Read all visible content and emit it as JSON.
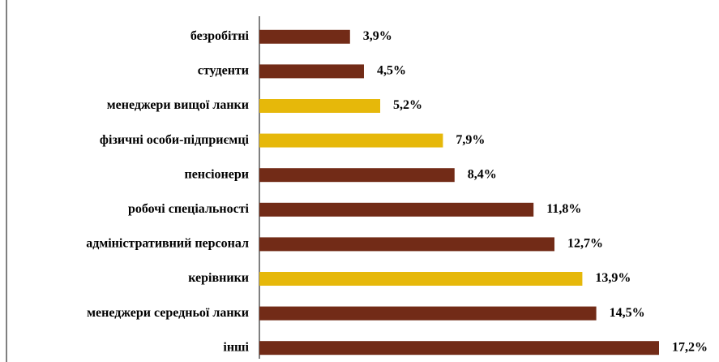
{
  "chart_data": {
    "type": "bar",
    "orientation": "horizontal",
    "categories": [
      "безробітні",
      "студенти",
      "менеджери вищої ланки",
      "фізичні особи-підприємці",
      "пенсіонери",
      "робочі спеціальності",
      "адміністративний персонал",
      "керівники",
      "менеджери середньої ланки",
      "інші"
    ],
    "values": [
      3.9,
      4.5,
      5.2,
      7.9,
      8.4,
      11.8,
      12.7,
      13.9,
      14.5,
      17.2
    ],
    "value_labels": [
      "3,9%",
      "4,5%",
      "5,2%",
      "7,9%",
      "8,4%",
      "11,8%",
      "12,7%",
      "13,9%",
      "14,5%",
      "17,2%"
    ],
    "colors": [
      "#722b17",
      "#722b17",
      "#e6b80a",
      "#e6b80a",
      "#722b17",
      "#722b17",
      "#722b17",
      "#e6b80a",
      "#722b17",
      "#722b17"
    ]
  }
}
